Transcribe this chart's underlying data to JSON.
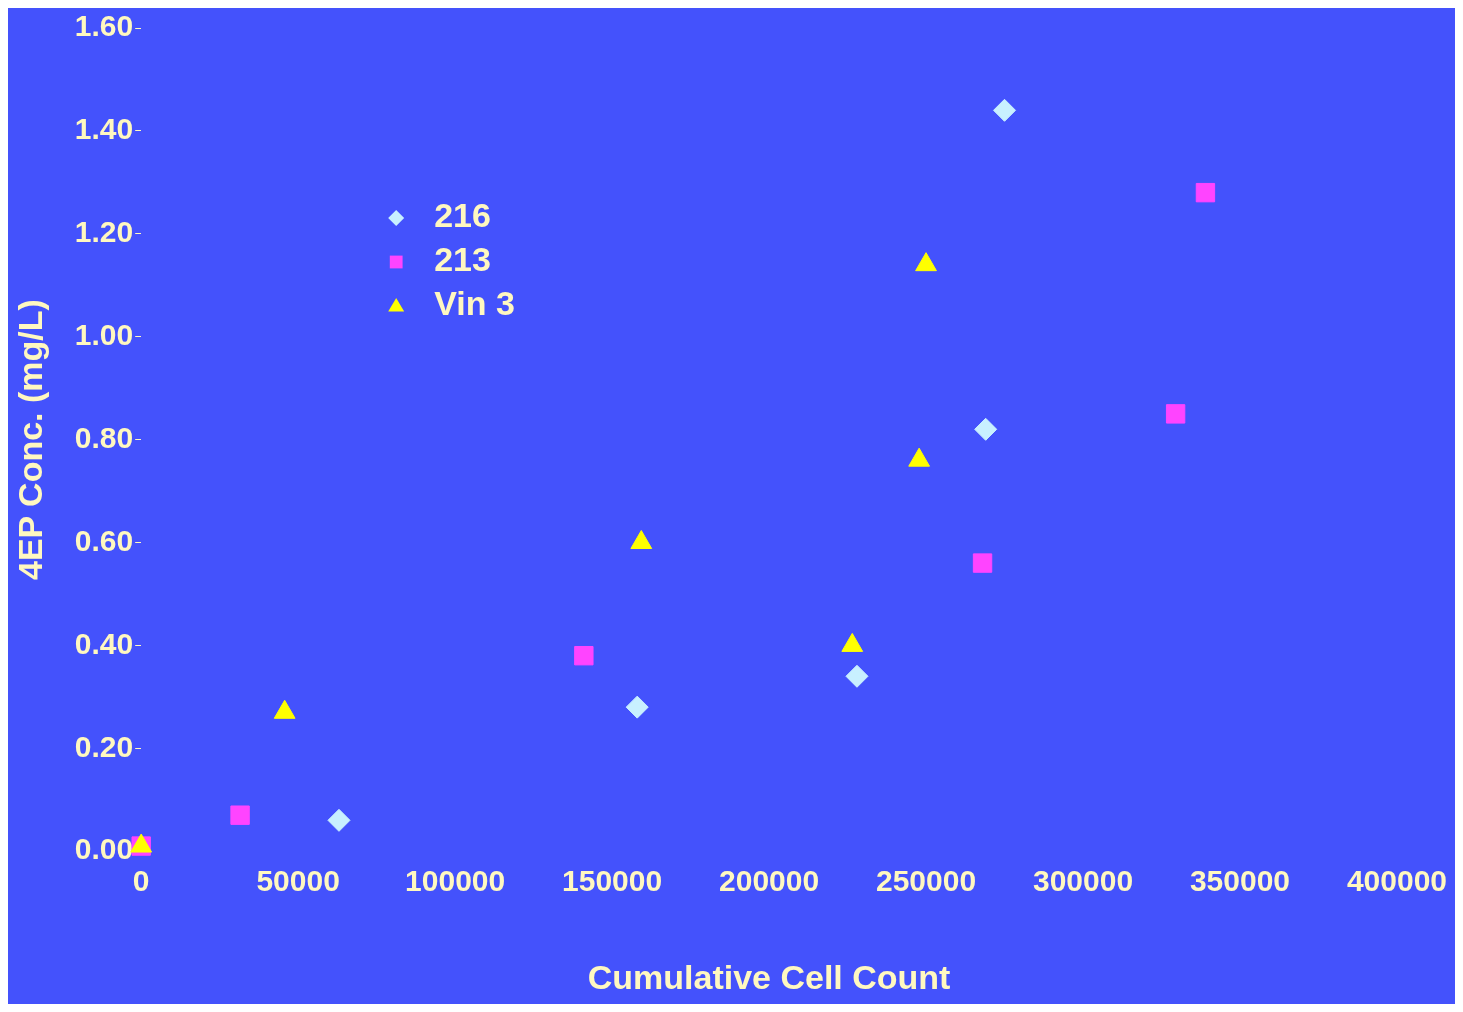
{
  "chart_data": {
    "type": "scatter",
    "xlabel": "Cumulative Cell Count",
    "ylabel": "4EP Conc. (mg/L)",
    "xlim": [
      0,
      400000
    ],
    "xticks": [
      0,
      50000,
      100000,
      150000,
      200000,
      250000,
      300000,
      350000,
      400000
    ],
    "ylim": [
      0,
      1.6
    ],
    "yticks": [
      {
        "value": 0,
        "label": "0.00"
      },
      {
        "value": 0.2,
        "label": "0.20"
      },
      {
        "value": 0.4,
        "label": "0.40"
      },
      {
        "value": 0.6,
        "label": "0.60"
      },
      {
        "value": 0.8,
        "label": "0.80"
      },
      {
        "value": 1.0,
        "label": "1.00"
      },
      {
        "value": 1.2,
        "label": "1.20"
      },
      {
        "value": 1.4,
        "label": "1.40"
      },
      {
        "value": 1.6,
        "label": "1.60"
      }
    ],
    "grid": false,
    "legend": "top left",
    "series": [
      {
        "name": "216",
        "color": "#c8f0ff",
        "marker": "diamond",
        "x": [
          63000,
          158000,
          228000,
          269000,
          275000
        ],
        "values": [
          0.06,
          0.28,
          0.34,
          0.82,
          1.44
        ]
      },
      {
        "name": "213",
        "color": "#ff44ff",
        "marker": "square",
        "x": [
          0,
          31500,
          141000,
          268000,
          329500,
          339000
        ],
        "values": [
          0.01,
          0.07,
          0.38,
          0.56,
          0.85,
          1.28
        ]
      },
      {
        "name": "Vin 3",
        "color": "#ffff00",
        "marker": "triangle",
        "x": [
          0,
          45700,
          159300,
          226500,
          247800,
          250000
        ],
        "values": [
          0.01,
          0.27,
          0.6,
          0.4,
          0.76,
          1.14
        ]
      }
    ]
  }
}
